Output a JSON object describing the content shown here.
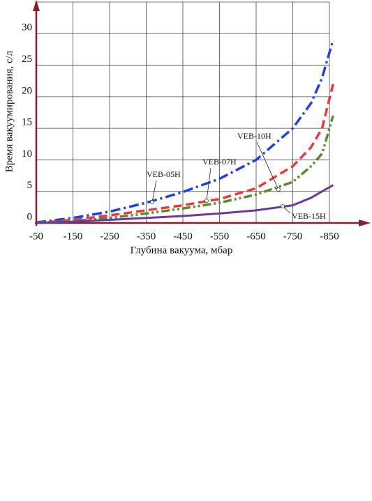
{
  "chart_data": {
    "type": "line",
    "ylabel": "Время вакуумирования, с/л",
    "xlabel": "Глубина вакуума, мбар",
    "x": [
      -50,
      -150,
      -250,
      -350,
      -450,
      -550,
      -650,
      -750,
      -800,
      -830,
      -860
    ],
    "series": [
      {
        "name": "VEB-05H",
        "color": "#1f3fe0",
        "dash": "14 5 3 5",
        "values": [
          0.1,
          0.8,
          1.8,
          3.2,
          4.9,
          7,
          10,
          15,
          19,
          23,
          29
        ]
      },
      {
        "name": "VEB-07H",
        "color": "#e83a3a",
        "dash": "12 6",
        "values": [
          0,
          0.5,
          1.2,
          2,
          2.8,
          3.8,
          5.5,
          9,
          12,
          15,
          22
        ]
      },
      {
        "name": "VEB-10H",
        "color": "#5a8a2a",
        "dash": "12 4 3 4 3 4",
        "values": [
          0,
          0.3,
          0.8,
          1.5,
          2.3,
          3.2,
          4.5,
          6.5,
          9,
          11,
          17
        ]
      },
      {
        "name": "VEB-15H",
        "color": "#6a3a9a",
        "dash": "none",
        "values": [
          0,
          0.2,
          0.5,
          0.8,
          1.1,
          1.5,
          2,
          2.8,
          4,
          5,
          6
        ]
      }
    ],
    "xlim": [
      -50,
      -850
    ],
    "ylim": [
      0,
      35
    ],
    "xticks": [
      -50,
      -150,
      -250,
      -350,
      -450,
      -550,
      -650,
      -750,
      -850
    ],
    "yticks": [
      0,
      5,
      10,
      15,
      20,
      25,
      30
    ],
    "grid": true
  }
}
